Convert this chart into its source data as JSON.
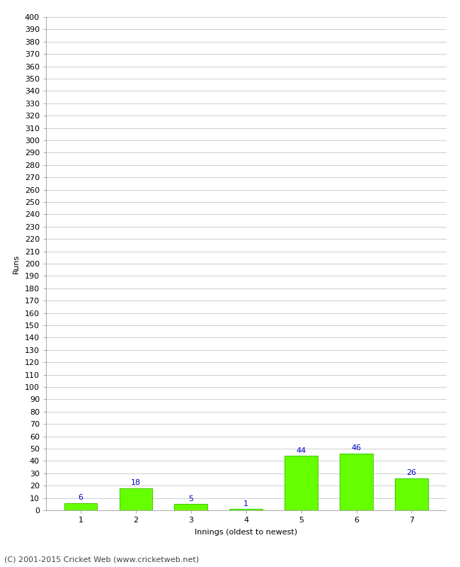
{
  "categories": [
    "1",
    "2",
    "3",
    "4",
    "5",
    "6",
    "7"
  ],
  "values": [
    6,
    18,
    5,
    1,
    44,
    46,
    26
  ],
  "bar_color": "#66ff00",
  "bar_edge_color": "#44cc00",
  "label_color": "#0000cc",
  "xlabel": "Innings (oldest to newest)",
  "ylabel": "Runs",
  "ylim": [
    0,
    400
  ],
  "background_color": "#ffffff",
  "grid_color": "#bbbbbb",
  "footer_text": "(C) 2001-2015 Cricket Web (www.cricketweb.net)",
  "label_fontsize": 8,
  "axis_label_fontsize": 8,
  "tick_fontsize": 8,
  "footer_fontsize": 8
}
